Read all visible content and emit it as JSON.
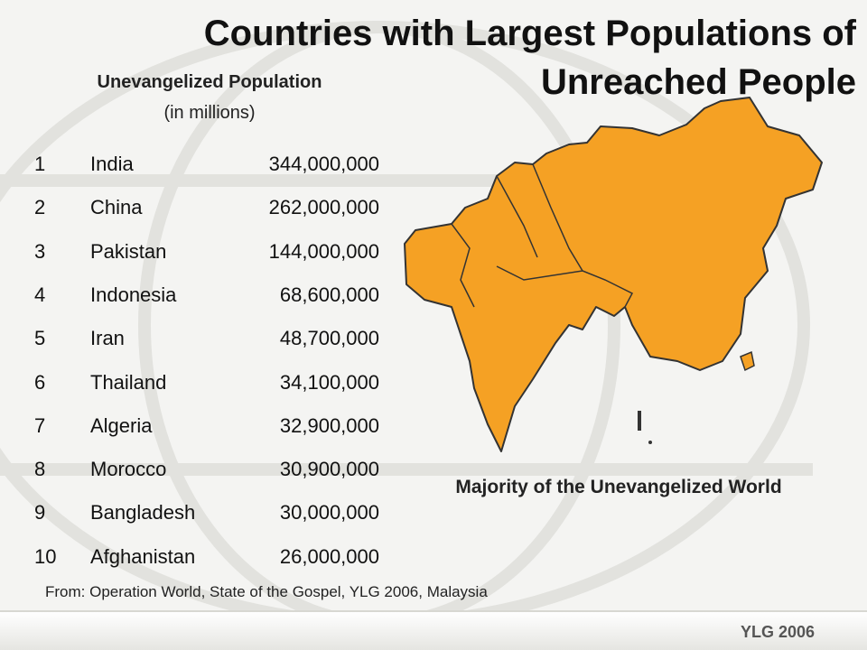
{
  "header": {
    "title": "Countries with Largest Populations of Unreached People"
  },
  "table": {
    "heading": "Unevangelized Population",
    "subheading": "(in millions)",
    "rows": [
      [
        1,
        "India",
        "344,000,000"
      ],
      [
        2,
        "China",
        "262,000,000"
      ],
      [
        3,
        "Pakistan",
        "144,000,000"
      ],
      [
        4,
        "Indonesia",
        "68,600,000"
      ],
      [
        5,
        "Iran",
        "48,700,000"
      ],
      [
        6,
        "Thailand",
        "34,100,000"
      ],
      [
        7,
        "Algeria",
        "32,900,000"
      ],
      [
        8,
        "Morocco",
        "30,900,000"
      ],
      [
        9,
        "Bangladesh",
        "30,000,000"
      ],
      [
        10,
        "Afghanistan",
        "26,000,000"
      ]
    ]
  },
  "map": {
    "caption": "Majority of the Unevangelized World"
  },
  "footer": {
    "source": "From:  Operation World, State of the Gospel, YLG 2006, Malaysia",
    "logo": "YLG 2006"
  }
}
